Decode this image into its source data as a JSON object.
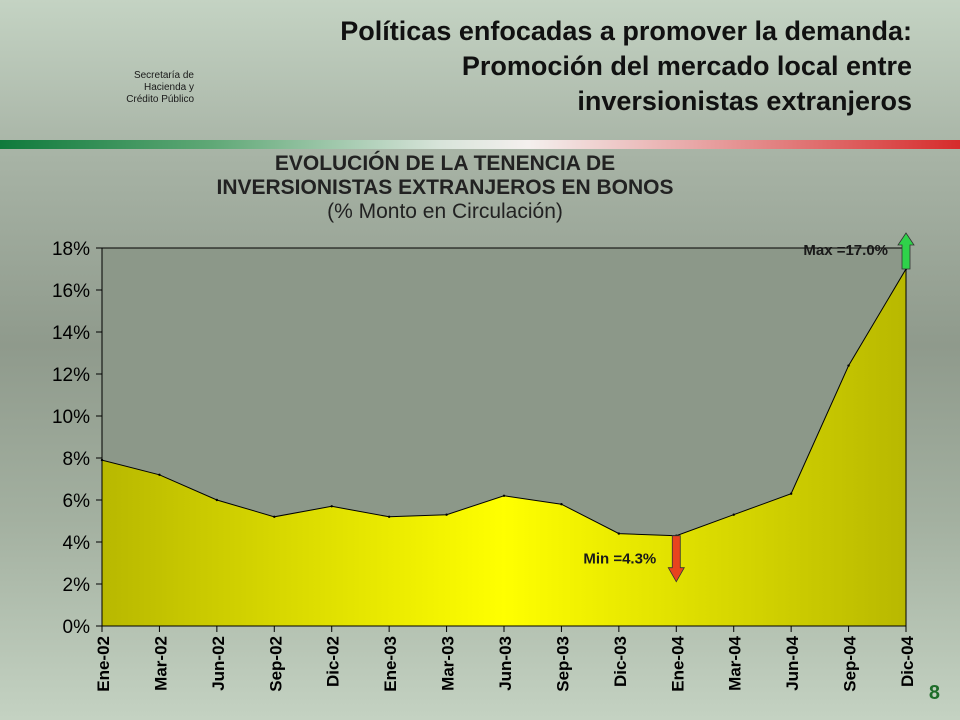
{
  "header": {
    "org_lines": [
      "Secretaría de",
      "Hacienda y",
      "Crédito Público"
    ],
    "title_lines": [
      "Políticas enfocadas a promover la demanda:",
      "Promoción del mercado local entre",
      "inversionistas extranjeros"
    ]
  },
  "page_number": "8",
  "colors": {
    "area_fill_light": "#ffff00",
    "area_fill_dark": "#b8b800",
    "plot_bg": "#8c9889",
    "max_arrow": "#2fd24a",
    "min_arrow": "#e8431e"
  },
  "chart_data": {
    "type": "area",
    "title_lines": [
      "EVOLUCIÓN DE LA TENENCIA DE",
      "INVERSIONISTAS EXTRANJEROS EN BONOS"
    ],
    "subtitle": "(% Monto en Circulación)",
    "categories": [
      "Ene-02",
      "Mar-02",
      "Jun-02",
      "Sep-02",
      "Dic-02",
      "Ene-03",
      "Mar-03",
      "Jun-03",
      "Sep-03",
      "Dic-03",
      "Ene-04",
      "Mar-04",
      "Jun-04",
      "Sep-04",
      "Dic-04"
    ],
    "values": [
      7.9,
      7.2,
      6.0,
      5.2,
      5.7,
      5.2,
      5.3,
      6.2,
      5.8,
      4.4,
      4.3,
      5.3,
      6.3,
      12.4,
      17.0
    ],
    "ylim": [
      0,
      18
    ],
    "yticks": [
      0,
      2,
      4,
      6,
      8,
      10,
      12,
      14,
      16,
      18
    ],
    "ytick_labels": [
      "0%",
      "2%",
      "4%",
      "6%",
      "8%",
      "10%",
      "12%",
      "14%",
      "16%",
      "18%"
    ],
    "annotations": {
      "max": {
        "label": "Max =17.0%",
        "index": 14
      },
      "min": {
        "label": "Min =4.3%",
        "index": 10
      }
    }
  }
}
